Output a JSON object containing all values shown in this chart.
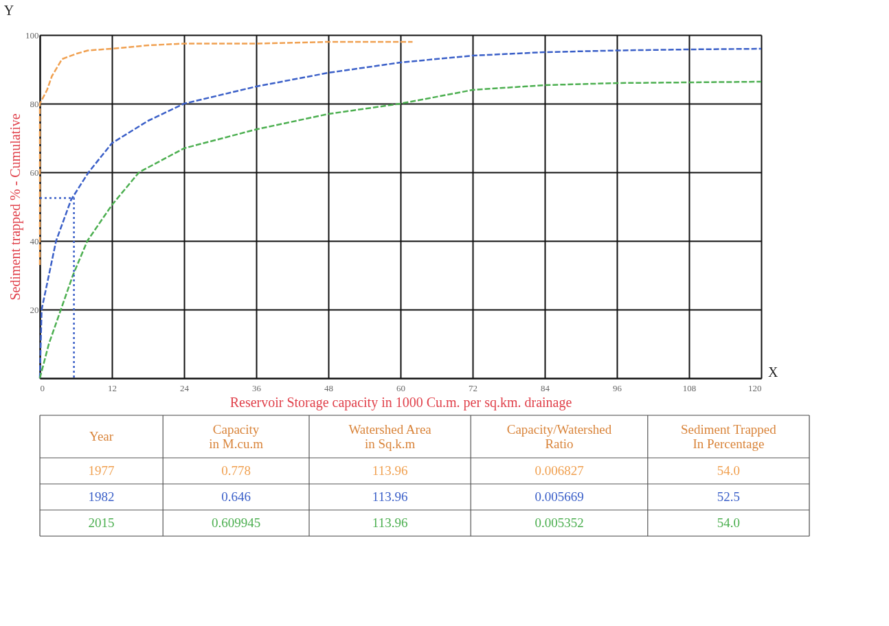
{
  "chart_data": {
    "type": "line",
    "xlabel": "Reservoir Storage capacity in 1000 Cu.m. per sq.km. drainage",
    "ylabel": "Sediment trapped % - Cumulative",
    "xlim": [
      0,
      120
    ],
    "xticks": [
      0,
      12,
      24,
      36,
      48,
      60,
      72,
      84,
      96,
      108,
      120
    ],
    "ylim": [
      0,
      100
    ],
    "yticks": [
      {
        "value": 0,
        "label": null
      },
      20,
      40,
      60,
      80,
      100
    ],
    "grid": true,
    "legend": false,
    "line_style": "dashed",
    "marker": "none",
    "series": [
      {
        "color": "#f0a050",
        "x": [
          0,
          0,
          0,
          1.2,
          2,
          3.7,
          6,
          8,
          12,
          18,
          24,
          36,
          48,
          62
        ],
        "values": [
          33,
          50,
          80,
          84,
          88,
          93,
          94.5,
          95.5,
          96,
          97,
          97.5,
          97.5,
          98,
          98
        ]
      },
      {
        "color": "#3a5fc8",
        "x": [
          0,
          0.3,
          2.7,
          5.2,
          8.1,
          12,
          18,
          24,
          36,
          48,
          60,
          72,
          84,
          96,
          108,
          120
        ],
        "values": [
          0,
          20,
          40,
          52,
          60,
          68.5,
          75,
          80,
          85,
          89,
          92,
          94,
          95,
          95.5,
          95.8,
          96
        ]
      },
      {
        "color": "#4caf50",
        "x": [
          0,
          1.5,
          3.5,
          5.5,
          7.9,
          12,
          16.5,
          24,
          36,
          48,
          60,
          72,
          84,
          96,
          108,
          120
        ],
        "values": [
          0,
          10,
          20,
          30,
          40,
          50.5,
          60,
          67,
          72.5,
          77,
          80,
          84,
          85.4,
          86,
          86.2,
          86.4
        ]
      },
      {
        "color": "#3a5fc8",
        "line_style": "dotted",
        "x": [
          0,
          5.67,
          5.67
        ],
        "values": [
          52.5,
          52.5,
          0
        ]
      }
    ],
    "annotations": [
      "Y",
      "X",
      "Year",
      "Capacity\nin M.cu.m",
      "Watershed Area\nin Sq.k.m",
      "Capacity/Watershed\nRatio",
      "Sediment Trapped\nIn Percentage",
      "1977",
      "0.778",
      "113.96",
      "0.006827",
      "54.0",
      "1982",
      "0.646",
      "113.96",
      "0.005669",
      "52.5",
      "2015",
      "0.609945",
      "113.96",
      "0.005352",
      "54.0"
    ]
  }
}
